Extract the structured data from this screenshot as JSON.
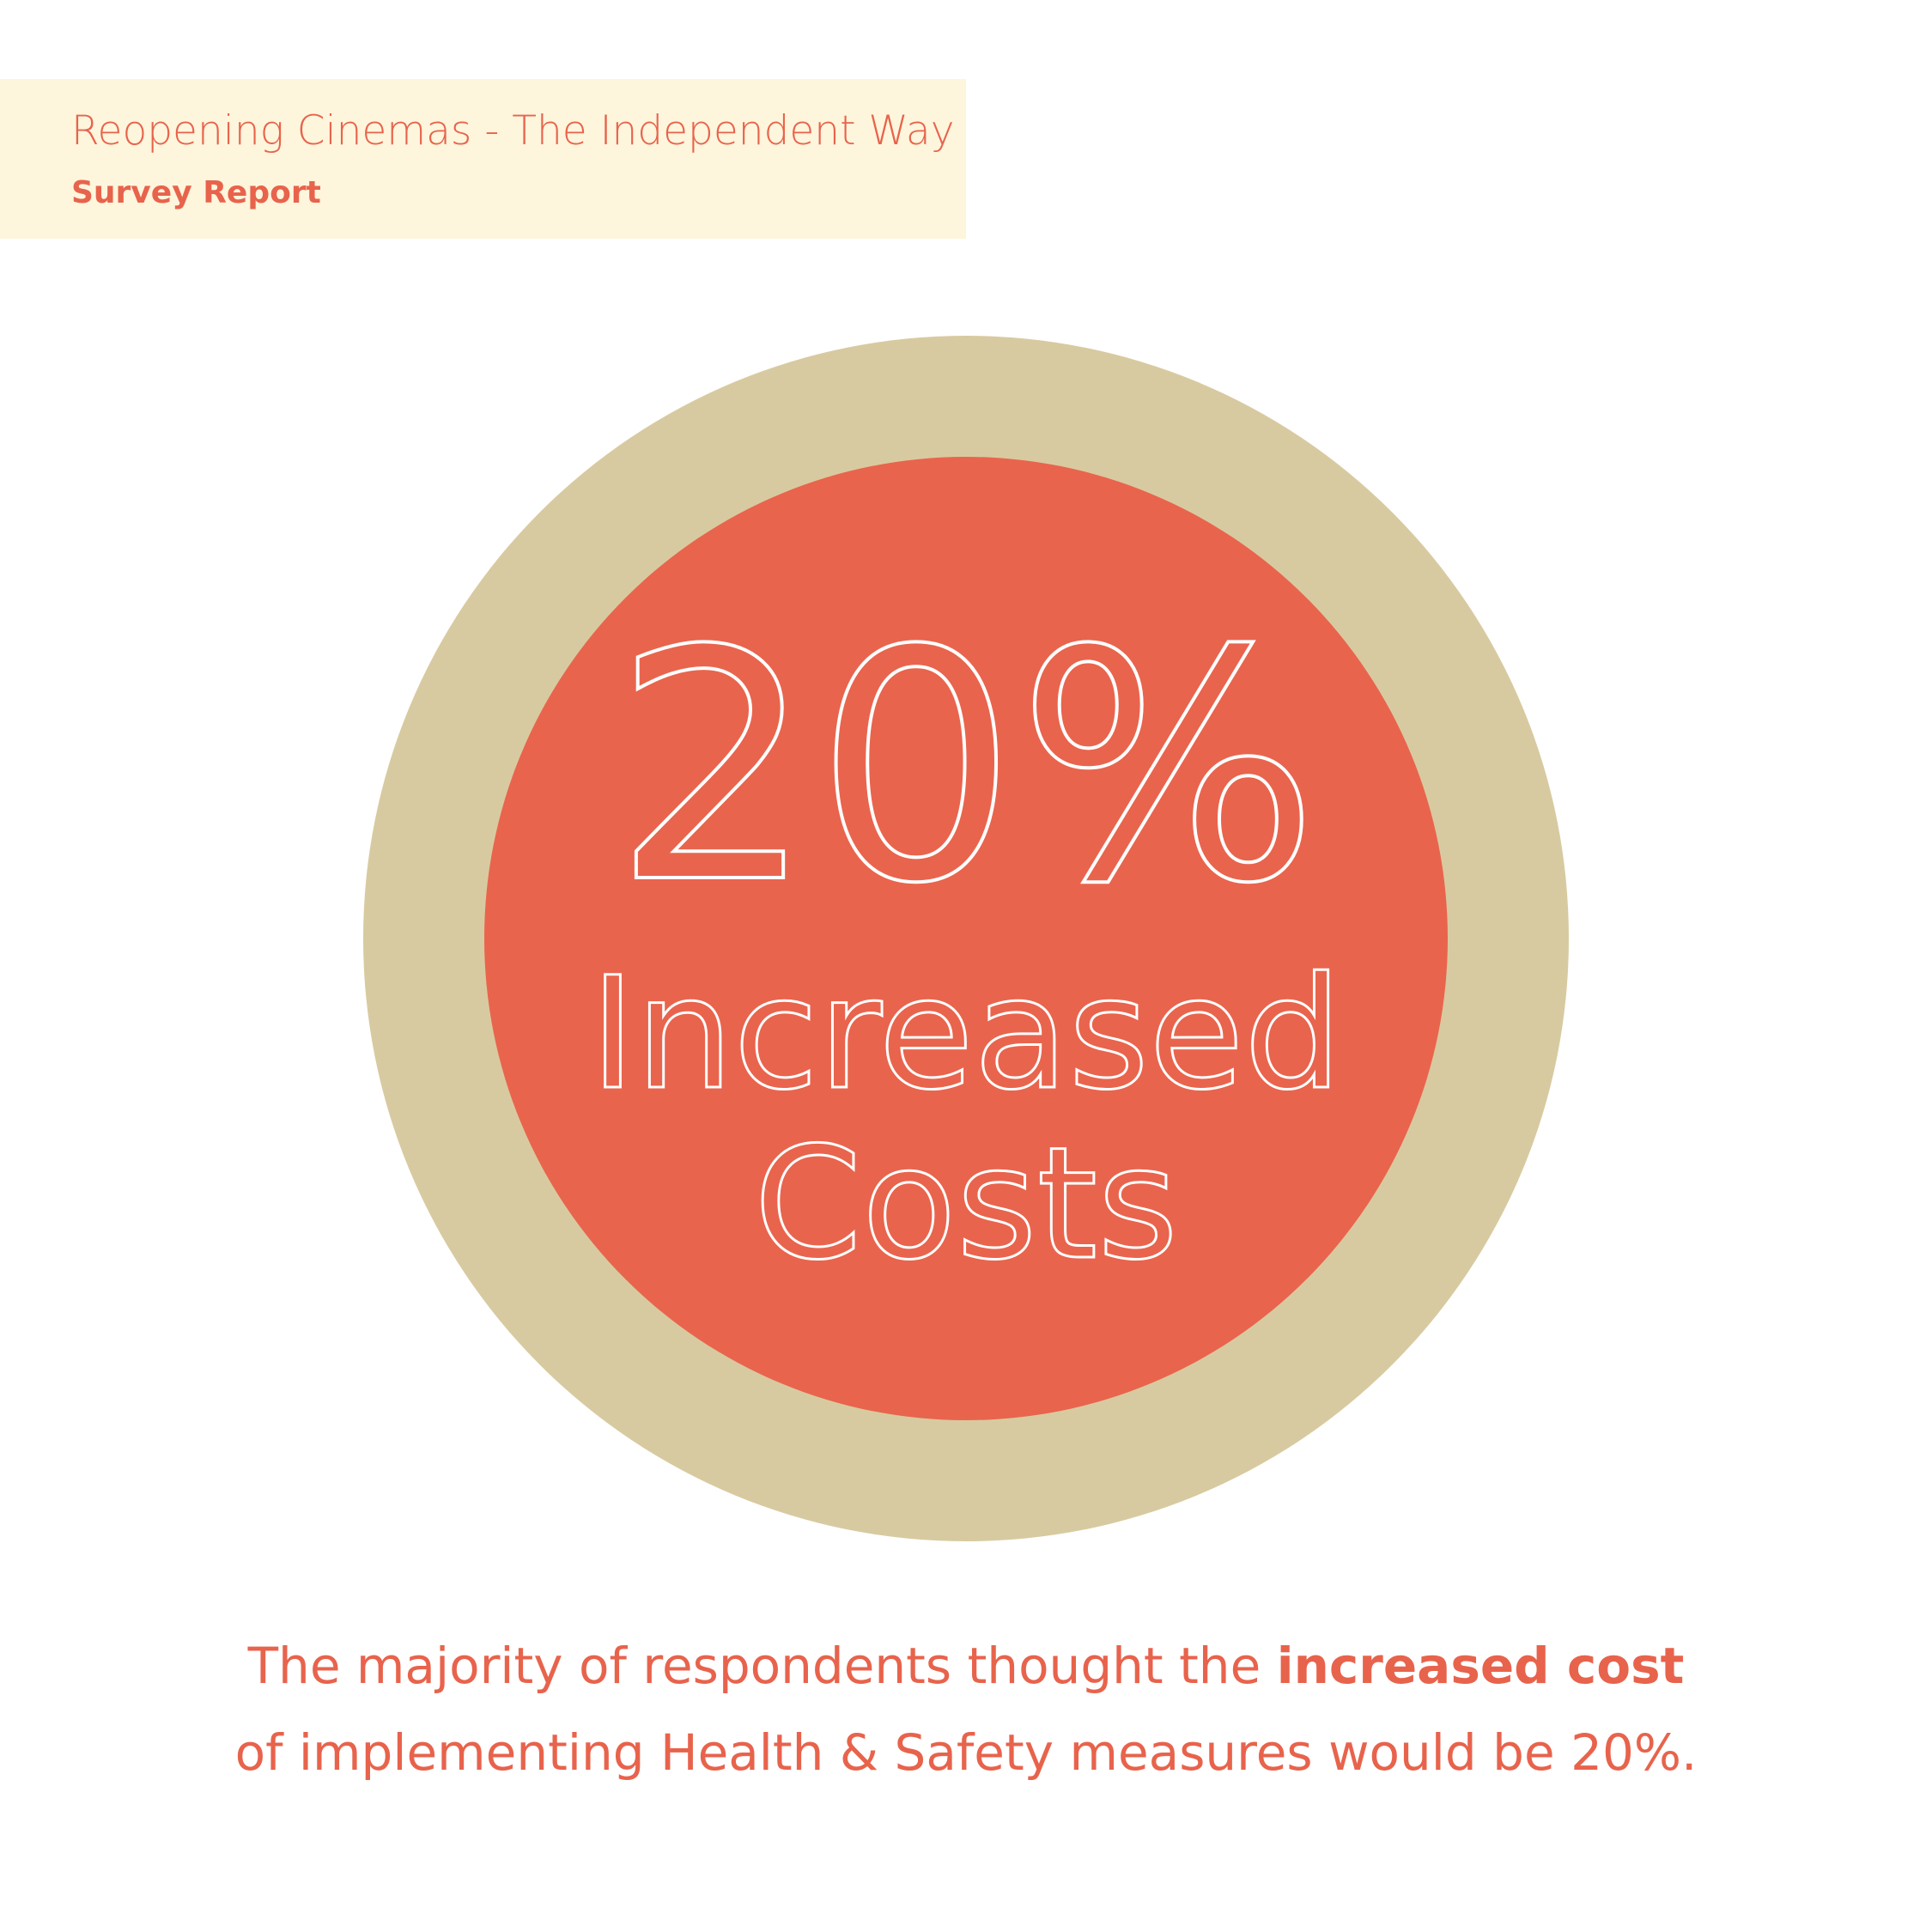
{
  "header": {
    "title": "Reopening Cinemas - The Independent Way",
    "subtitle": "Survey Report"
  },
  "figure": {
    "value": "20%",
    "label_lines": [
      "Increased",
      "Costs"
    ]
  },
  "caption": {
    "parts": [
      "The majority of respondents thought the ",
      "increased cost",
      "of implementing Health & Safety measures would be 20%."
    ]
  }
}
